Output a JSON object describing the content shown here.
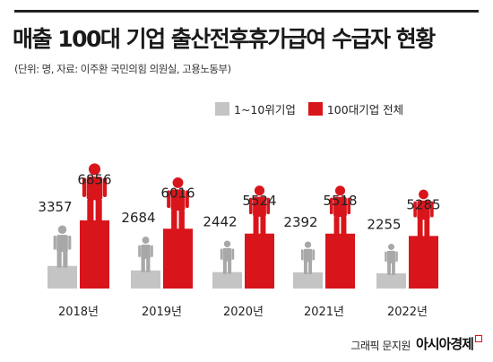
{
  "header": {
    "title": "매출 100대 기업 출산전후휴가급여 수급자 현황",
    "source": "(단위: 명, 자료: 이주환 국민의힘 의원실, 고용노동부)"
  },
  "legend": {
    "series_1": "1~10위기업",
    "series_2": "100대기업 전체"
  },
  "footer": {
    "credit": "그래픽 문지원",
    "brand": "아시아경제"
  },
  "colors": {
    "red": "#d8151b",
    "gray": "#c4c4c4",
    "gray_figure": "#a8a8a8"
  },
  "chart_data": {
    "type": "bar",
    "categories": [
      "2018년",
      "2019년",
      "2020년",
      "2021년",
      "2022년"
    ],
    "series": [
      {
        "name": "1~10위기업",
        "values": [
          3357,
          2684,
          2442,
          2392,
          2255
        ]
      },
      {
        "name": "100대기업 전체",
        "values": [
          6856,
          6016,
          5524,
          5518,
          5285
        ]
      }
    ],
    "title": "매출 100대 기업 출산전후휴가급여 수급자 현황",
    "xlabel": "",
    "ylabel": "",
    "unit": "명",
    "grid": false
  }
}
